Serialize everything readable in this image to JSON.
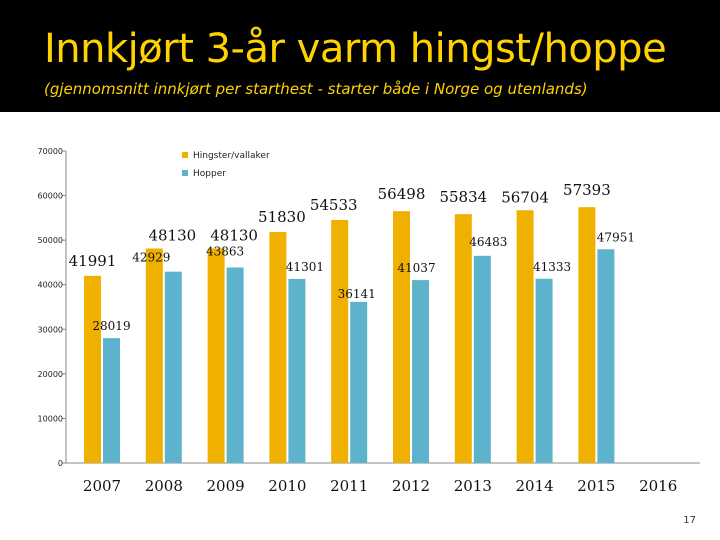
{
  "title": "Innkjørt 3-år varm hingst/hoppe",
  "subtitle": "(gjennomsnitt innkjørt per starthest - starter både i Norge og utenlands)",
  "page_number": "17",
  "colors": {
    "hingster": "#f0b000",
    "hopper": "#5eb3cc",
    "header_bg": "#000000",
    "title": "#ffd200"
  },
  "chart_data": {
    "type": "bar",
    "categories": [
      "2007",
      "2008",
      "2009",
      "2010",
      "2011",
      "2012",
      "2013",
      "2014",
      "2015",
      "2016"
    ],
    "series": [
      {
        "name": "Hingster/vallaker",
        "values": [
          41991,
          48130,
          48130,
          51830,
          54533,
          56498,
          55834,
          56704,
          57393,
          null
        ]
      },
      {
        "name": "Hopper",
        "values": [
          28019,
          42929,
          43863,
          41301,
          36141,
          41037,
          46483,
          41333,
          47951,
          null
        ]
      }
    ],
    "ylim": [
      0,
      70000
    ],
    "yticks": [
      "0",
      "10000",
      "20000",
      "30000",
      "40000",
      "50000",
      "60000",
      "70000"
    ],
    "grid": false,
    "legend": "top-left",
    "xlabel": "",
    "ylabel": ""
  }
}
